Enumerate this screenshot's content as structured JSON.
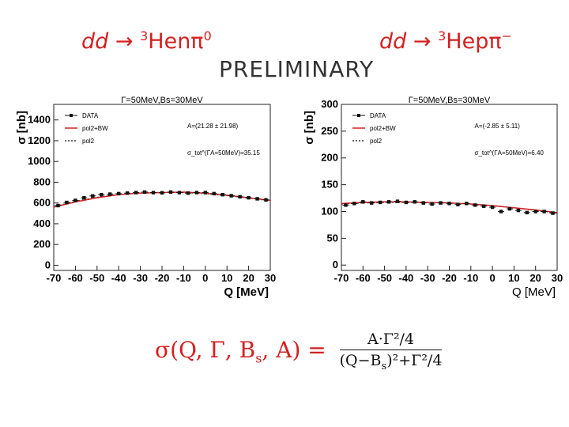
{
  "header": {
    "left_reaction": {
      "lhs": "dd",
      "arrow": "→",
      "sup": "3",
      "rhs": "Henπ",
      "charge": "0"
    },
    "right_reaction": {
      "lhs": "dd",
      "arrow": "→",
      "sup": "3",
      "rhs": "Hepπ",
      "charge": "−"
    },
    "watermark": "PRELIMINARY"
  },
  "formula": {
    "lhs": "σ(Q, Γ, B",
    "lhs_sub": "s",
    "lhs_tail": ", A) =",
    "numerator": "A·Γ²/4",
    "denominator": "(Q−B",
    "denominator_sub": "s",
    "denominator_tail": ")²+Γ²/4"
  },
  "colors": {
    "fit_bw": "#d42020",
    "data": "#111111",
    "reaction": "#d42020"
  },
  "chart_data": [
    {
      "type": "scatter",
      "title": "Γ=50MeV,Bs=30MeV",
      "xlabel": "Q [MeV]",
      "ylabel": "σ [nb]",
      "xlim": [
        -70,
        30
      ],
      "ylim": [
        -50,
        1550
      ],
      "xticks": [
        "-70",
        "-60",
        "-50",
        "-40",
        "-30",
        "-20",
        "-10",
        "0",
        "10",
        "20",
        "30"
      ],
      "yticks": [
        "0",
        "200",
        "400",
        "600",
        "800",
        "1000",
        "1200",
        "1400"
      ],
      "legend": [
        "DATA",
        "pol2+BW",
        "pol2"
      ],
      "annotations": [
        "A=(21.28 ± 21.98)",
        "σ_tot^(ΓA=50MeV)=35.15"
      ],
      "series": [
        {
          "name": "DATA",
          "x": [
            -68,
            -64,
            -60,
            -56,
            -52,
            -48,
            -44,
            -40,
            -36,
            -32,
            -28,
            -24,
            -20,
            -16,
            -12,
            -8,
            -4,
            0,
            4,
            8,
            12,
            16,
            20,
            24,
            28
          ],
          "y": [
            575,
            605,
            625,
            650,
            668,
            680,
            685,
            690,
            695,
            700,
            705,
            700,
            698,
            705,
            700,
            695,
            700,
            700,
            690,
            680,
            670,
            660,
            650,
            640,
            630
          ]
        },
        {
          "name": "pol2+BW",
          "x": [
            -70,
            -60,
            -50,
            -40,
            -30,
            -20,
            -10,
            0,
            10,
            20,
            30
          ],
          "y": [
            560,
            610,
            650,
            680,
            695,
            700,
            705,
            695,
            675,
            650,
            625
          ]
        },
        {
          "name": "pol2",
          "x": [
            -70,
            -60,
            -50,
            -40,
            -30,
            -20,
            -10,
            0,
            10,
            20,
            30
          ],
          "y": [
            565,
            615,
            655,
            682,
            697,
            702,
            700,
            690,
            670,
            648,
            622
          ]
        }
      ]
    },
    {
      "type": "scatter",
      "title": "Γ=50MeV,Bs=30MeV",
      "xlabel": "Q [MeV]",
      "ylabel": "σ [nb]",
      "xlim": [
        -70,
        30
      ],
      "ylim": [
        -10,
        300
      ],
      "xticks": [
        "-70",
        "-60",
        "-50",
        "-40",
        "-30",
        "-20",
        "-10",
        "0",
        "10",
        "20",
        "30"
      ],
      "yticks": [
        "0",
        "50",
        "100",
        "150",
        "200",
        "250",
        "300"
      ],
      "legend": [
        "DATA",
        "pol2+BW",
        "pol2"
      ],
      "annotations": [
        "A=(-2.85 ± 5.11)",
        "σ_tot^(ΓA=50MeV)=6.40"
      ],
      "series": [
        {
          "name": "DATA",
          "x": [
            -68,
            -64,
            -60,
            -56,
            -52,
            -48,
            -44,
            -40,
            -36,
            -32,
            -28,
            -24,
            -20,
            -16,
            -12,
            -8,
            -4,
            0,
            4,
            8,
            12,
            16,
            20,
            24,
            28
          ],
          "y": [
            112,
            115,
            118,
            116,
            117,
            118,
            119,
            117,
            118,
            116,
            114,
            116,
            115,
            113,
            115,
            112,
            110,
            108,
            100,
            105,
            102,
            98,
            100,
            100,
            97
          ]
        },
        {
          "name": "pol2+BW",
          "x": [
            -70,
            -60,
            -50,
            -40,
            -30,
            -20,
            -10,
            0,
            10,
            20,
            30
          ],
          "y": [
            115,
            117,
            118,
            118,
            117,
            116,
            114,
            111,
            107,
            103,
            98
          ]
        },
        {
          "name": "pol2",
          "x": [
            -70,
            -60,
            -50,
            -40,
            -30,
            -20,
            -10,
            0,
            10,
            20,
            30
          ],
          "y": [
            114,
            116,
            117,
            117,
            117,
            116,
            114,
            111,
            107,
            102,
            97
          ]
        }
      ]
    }
  ]
}
